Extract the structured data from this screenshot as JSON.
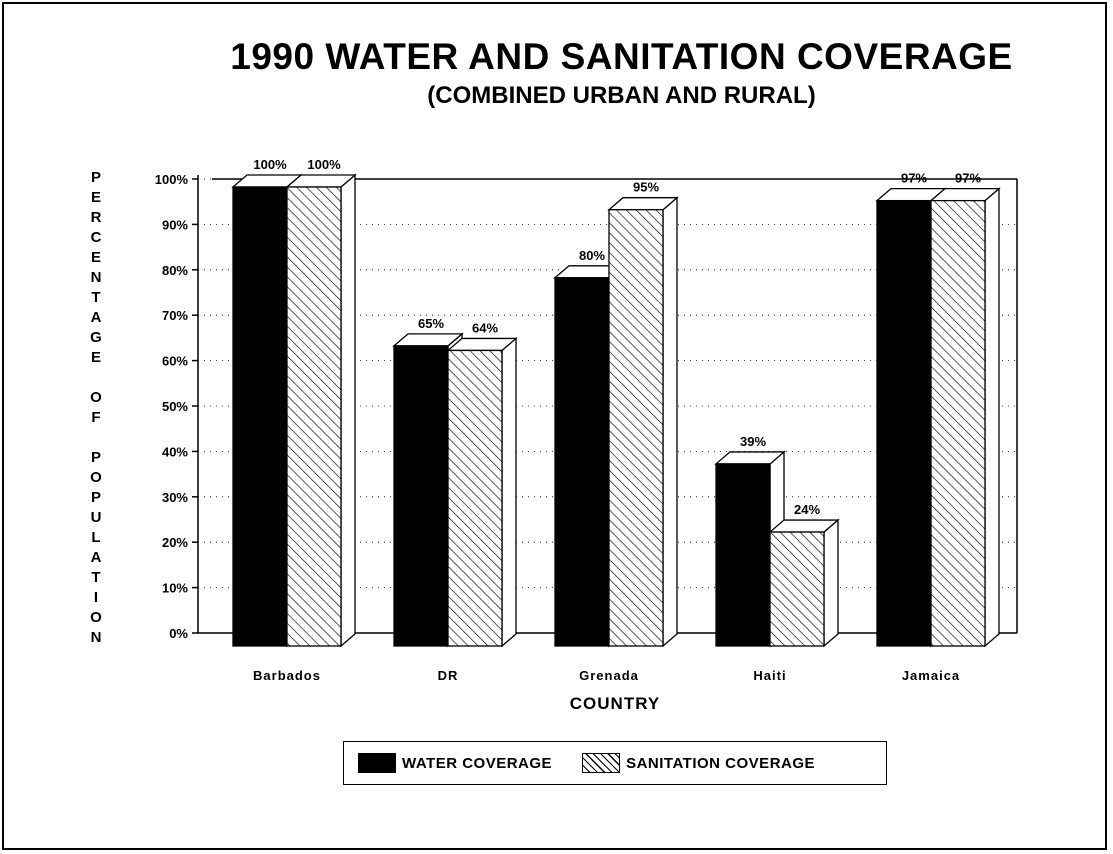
{
  "chart_data": {
    "type": "bar",
    "title": "1990 WATER AND SANITATION COVERAGE",
    "subtitle": "(COMBINED URBAN AND RURAL)",
    "xlabel": "COUNTRY",
    "ylabel": "PERCENTAGE OF POPULATION",
    "categories": [
      "Barbados",
      "DR",
      "Grenada",
      "Haiti",
      "Jamaica"
    ],
    "series": [
      {
        "name": "WATER COVERAGE",
        "values": [
          100,
          65,
          80,
          39,
          97
        ],
        "labels": [
          "100%",
          "65%",
          "80%",
          "39%",
          "97%"
        ]
      },
      {
        "name": "SANITATION COVERAGE",
        "values": [
          100,
          64,
          95,
          24,
          97
        ],
        "labels": [
          "100%",
          "64%",
          "95%",
          "24%",
          "97%"
        ]
      }
    ],
    "ylim": [
      0,
      100
    ],
    "yticks": [
      "0%",
      "10%",
      "20%",
      "30%",
      "40%",
      "50%",
      "60%",
      "70%",
      "80%",
      "90%",
      "100%"
    ],
    "grid": true,
    "legend_position": "bottom",
    "colors": {
      "water": "#000000",
      "sanitation_hatch": "#000000",
      "background": "#ffffff"
    }
  }
}
